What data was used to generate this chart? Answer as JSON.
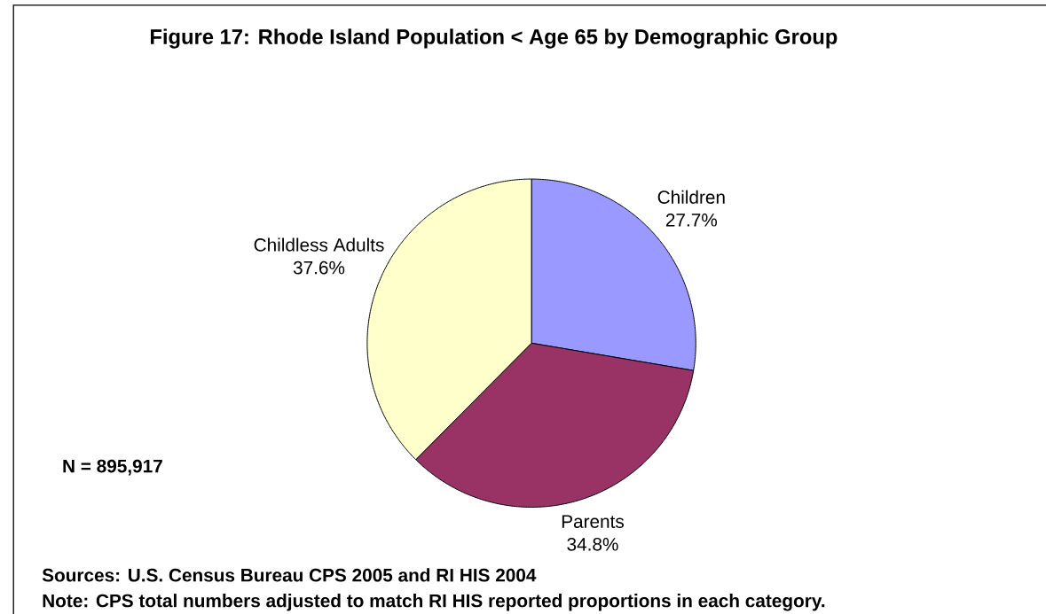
{
  "chart_data": {
    "type": "pie",
    "title": "Figure 17: Rhode Island Population < Age 65 by Demographic Group",
    "categories": [
      "Children",
      "Parents",
      "Childless Adults"
    ],
    "values": [
      27.7,
      34.8,
      37.6
    ],
    "colors": [
      "#9999ff",
      "#993366",
      "#ffffcc"
    ],
    "value_labels": [
      "27.7%",
      "34.8%",
      "37.6%"
    ],
    "annotations": [
      "N = 895,917",
      "Sources: U.S. Census Bureau CPS 2005 and RI HIS 2004",
      "Note: CPS total numbers adjusted to match RI HIS reported proportions in each category."
    ]
  }
}
